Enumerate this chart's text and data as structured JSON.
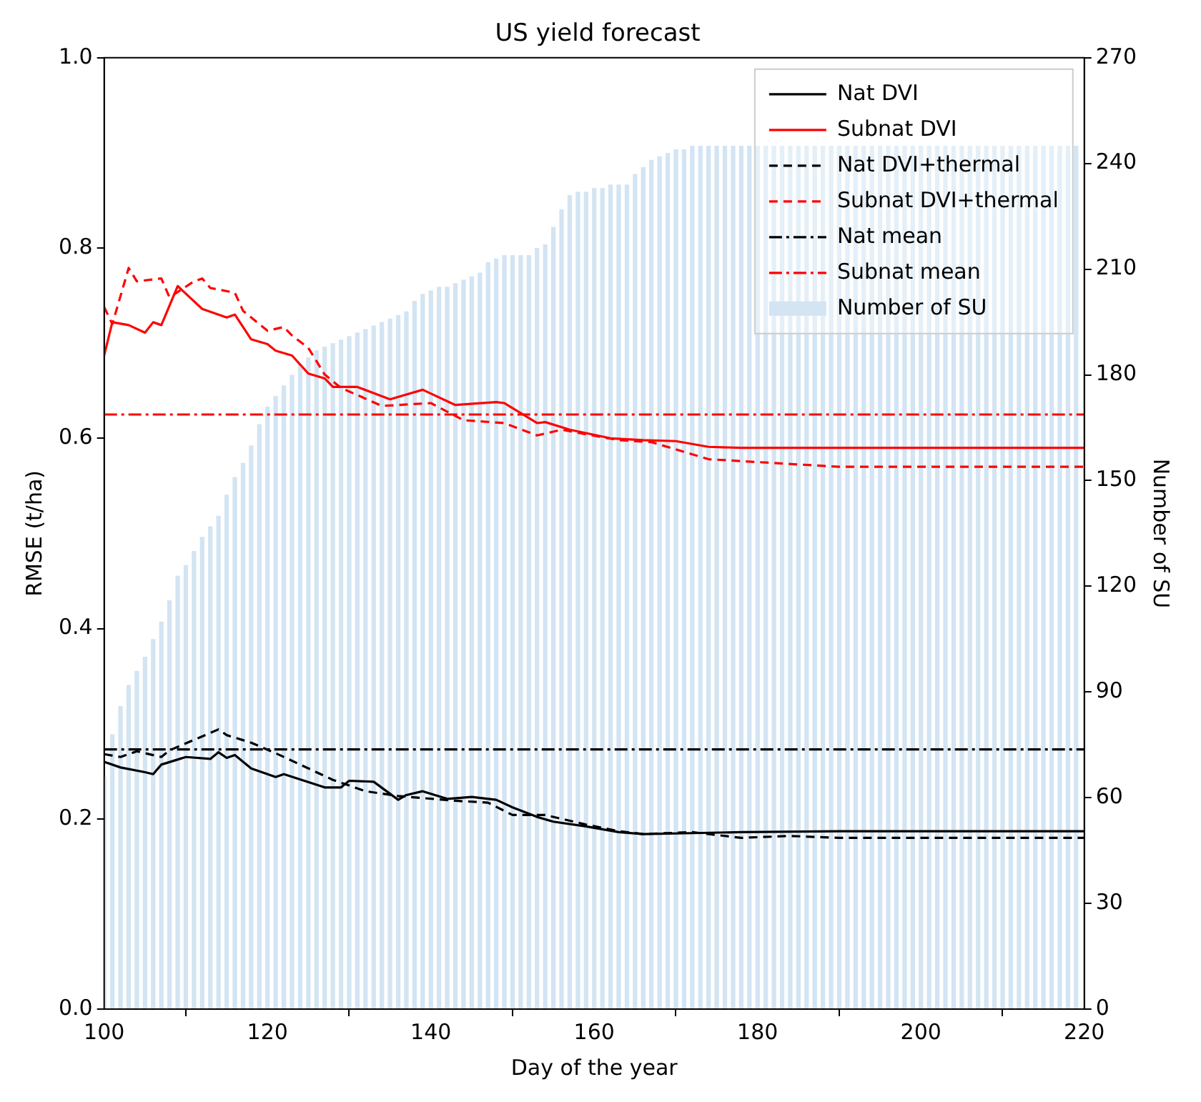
{
  "chart_data": {
    "type": "line",
    "title": "US yield forecast",
    "xlabel": "Day of the year",
    "ylabel": "RMSE (t/ha)",
    "y2label": "Number of SU",
    "xlim": [
      100,
      220
    ],
    "xticks": [
      100,
      120,
      140,
      160,
      180,
      200,
      220
    ],
    "ylim": [
      0,
      1
    ],
    "yticks": [
      {
        "value": 0,
        "label": "0.0"
      },
      0.2,
      0.4,
      0.6,
      0.8,
      {
        "value": 1,
        "label": "1.0"
      }
    ],
    "y2lim": [
      0,
      270
    ],
    "y2ticks": [
      0,
      30,
      60,
      90,
      120,
      150,
      180,
      210,
      240,
      270
    ],
    "grid": false,
    "legend": "top right",
    "series": [
      {
        "name": "Nat DVI",
        "color": "#000000",
        "line_style": "solid",
        "x": [
          100,
          102,
          105,
          106,
          107,
          110,
          113,
          114,
          115,
          116,
          118,
          121,
          122,
          127,
          129,
          130,
          133,
          136,
          137,
          139,
          142,
          145,
          148,
          150,
          153,
          155,
          159,
          163,
          166,
          172,
          178,
          190,
          220
        ],
        "values": [
          0.26,
          0.254,
          0.249,
          0.247,
          0.257,
          0.265,
          0.263,
          0.27,
          0.264,
          0.267,
          0.253,
          0.244,
          0.247,
          0.233,
          0.233,
          0.24,
          0.239,
          0.22,
          0.225,
          0.229,
          0.221,
          0.223,
          0.22,
          0.212,
          0.202,
          0.197,
          0.192,
          0.186,
          0.184,
          0.185,
          0.186,
          0.187,
          0.187
        ]
      },
      {
        "name": "Subnat DVI",
        "color": "#ff0000",
        "line_style": "solid",
        "x": [
          100,
          101,
          103,
          105,
          106,
          107,
          109,
          112,
          115,
          116,
          118,
          120,
          121,
          123,
          125,
          127,
          128,
          131,
          135,
          139,
          143,
          148,
          149,
          153,
          154,
          157,
          162,
          166,
          170,
          174,
          178,
          190,
          220
        ],
        "values": [
          0.687,
          0.722,
          0.719,
          0.711,
          0.722,
          0.719,
          0.76,
          0.736,
          0.727,
          0.73,
          0.704,
          0.699,
          0.692,
          0.687,
          0.668,
          0.663,
          0.654,
          0.654,
          0.641,
          0.651,
          0.635,
          0.638,
          0.637,
          0.616,
          0.617,
          0.609,
          0.6,
          0.598,
          0.597,
          0.591,
          0.59,
          0.59,
          0.59
        ]
      },
      {
        "name": "Nat DVI+thermal",
        "color": "#000000",
        "line_style": "dashed",
        "x": [
          100,
          102,
          104,
          107,
          108,
          114,
          115,
          118,
          121,
          128,
          132,
          136,
          143,
          147,
          150,
          154,
          159,
          163,
          166,
          172,
          178,
          184,
          190,
          220
        ],
        "values": [
          0.268,
          0.265,
          0.271,
          0.265,
          0.272,
          0.294,
          0.288,
          0.28,
          0.269,
          0.241,
          0.229,
          0.224,
          0.219,
          0.217,
          0.204,
          0.204,
          0.194,
          0.187,
          0.184,
          0.186,
          0.18,
          0.182,
          0.18,
          0.18
        ]
      },
      {
        "name": "Subnat DVI+thermal",
        "color": "#ff0000",
        "line_style": "dashed",
        "x": [
          100,
          101,
          103,
          104,
          107,
          108,
          111,
          112,
          113,
          116,
          117,
          120,
          122,
          123,
          125,
          127,
          129,
          134,
          140,
          144,
          149,
          153,
          156,
          163,
          167,
          174,
          180,
          190,
          220
        ],
        "values": [
          0.738,
          0.72,
          0.779,
          0.765,
          0.768,
          0.748,
          0.765,
          0.768,
          0.758,
          0.753,
          0.734,
          0.713,
          0.717,
          0.708,
          0.695,
          0.667,
          0.653,
          0.634,
          0.637,
          0.619,
          0.616,
          0.603,
          0.609,
          0.598,
          0.596,
          0.578,
          0.575,
          0.57,
          0.57
        ]
      },
      {
        "name": "Number of SU",
        "type": "bar",
        "axis": "y2",
        "color": "#d3e4f3",
        "x": [
          100,
          101,
          102,
          103,
          104,
          105,
          106,
          107,
          108,
          109,
          110,
          111,
          112,
          113,
          114,
          115,
          116,
          117,
          118,
          119,
          120,
          121,
          122,
          123,
          124,
          125,
          126,
          127,
          128,
          129,
          130,
          131,
          132,
          133,
          134,
          135,
          136,
          137,
          138,
          139,
          140,
          141,
          142,
          143,
          144,
          145,
          146,
          147,
          148,
          149,
          150,
          151,
          152,
          153,
          154,
          155,
          156,
          157,
          158,
          159,
          160,
          161,
          162,
          163,
          164,
          165,
          166,
          167,
          168,
          169,
          170,
          171,
          172,
          173,
          174,
          175,
          176,
          177,
          178,
          179,
          180,
          181,
          182,
          183,
          184,
          185,
          186,
          187,
          188,
          189,
          190,
          191,
          192,
          193,
          194,
          195,
          196,
          197,
          198,
          199,
          200,
          201,
          202,
          203,
          204,
          205,
          206,
          207,
          208,
          209,
          210,
          211,
          212,
          213,
          214,
          215,
          216,
          217,
          218,
          219
        ],
        "values": [
          66,
          78,
          86,
          92,
          96,
          100,
          105,
          110,
          116,
          123,
          126,
          130,
          134,
          137,
          140,
          146,
          151,
          155,
          160,
          166,
          171,
          174,
          177,
          180,
          183,
          185,
          187,
          188,
          189,
          190,
          191,
          192,
          193,
          194,
          195,
          196,
          197,
          198,
          201,
          203,
          204,
          205,
          205,
          206,
          207,
          208,
          209,
          212,
          213,
          214,
          214,
          214,
          214,
          216,
          217,
          222,
          227,
          231,
          232,
          232,
          233,
          233,
          234,
          234,
          234,
          237,
          239,
          241,
          242,
          243,
          244,
          244,
          245,
          245,
          245,
          245,
          245,
          245,
          245,
          245,
          245,
          245,
          245,
          245,
          245,
          245,
          245,
          245,
          245,
          245,
          245,
          245,
          245,
          245,
          245,
          245,
          245,
          245,
          245,
          245,
          245,
          245,
          245,
          245,
          245,
          245,
          245,
          245,
          245,
          245,
          245,
          245,
          245,
          245,
          245,
          245,
          245,
          245,
          245,
          245
        ]
      }
    ],
    "ref_lines": [
      {
        "axis": "y",
        "value": 0.273,
        "label": "Nat mean",
        "color": "#000000",
        "line_style": "dashdot"
      },
      {
        "axis": "y",
        "value": 0.625,
        "label": "Subnat mean",
        "color": "#ff0000",
        "line_style": "dashdot"
      }
    ]
  }
}
